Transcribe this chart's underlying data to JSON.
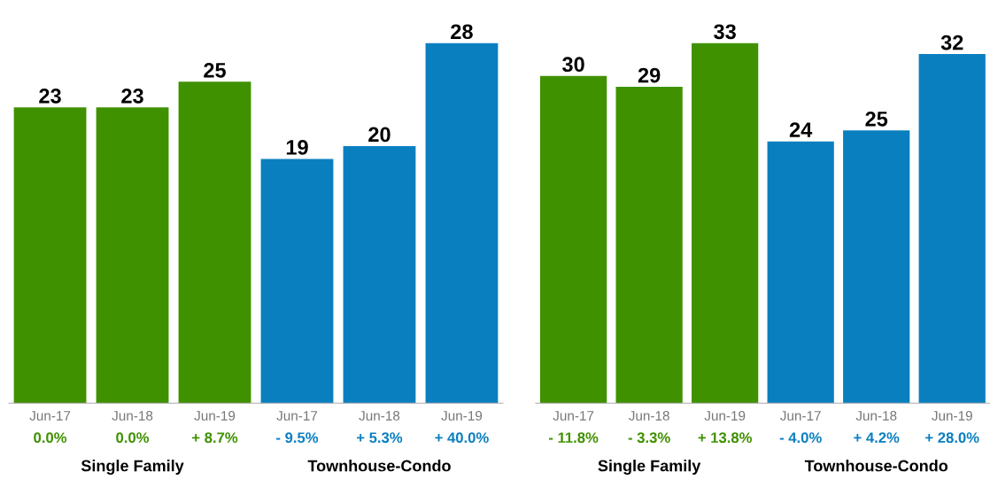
{
  "chart_data": [
    {
      "type": "bar",
      "categories": [
        "Jun-17",
        "Jun-18",
        "Jun-19",
        "Jun-17",
        "Jun-18",
        "Jun-19"
      ],
      "data_labels": true,
      "tick_labels": "x",
      "series": [
        {
          "color": "#3f9100",
          "values": [
            23,
            23,
            25,
            null,
            null,
            null
          ]
        },
        {
          "color": "#0a7fc0",
          "values": [
            null,
            null,
            null,
            19,
            20,
            28
          ]
        }
      ],
      "annotations": [
        "0.0%",
        "0.0%",
        "+ 8.7%",
        "- 9.5%",
        "+ 5.3%",
        "+ 40.0%",
        "Single Family",
        "Townhouse-Condo"
      ]
    },
    {
      "type": "bar",
      "categories": [
        "Jun-17",
        "Jun-18",
        "Jun-19",
        "Jun-17",
        "Jun-18",
        "Jun-19"
      ],
      "data_labels": true,
      "tick_labels": "x",
      "series": [
        {
          "color": "#3f9100",
          "values": [
            30,
            29,
            33,
            null,
            null,
            null
          ]
        },
        {
          "color": "#0a7fc0",
          "values": [
            null,
            null,
            null,
            24,
            25,
            32
          ]
        }
      ],
      "annotations": [
        "- 11.8%",
        "- 3.3%",
        "+ 13.8%",
        "- 4.0%",
        "+ 4.2%",
        "+ 28.0%",
        "Single Family",
        "Townhouse-Condo"
      ]
    }
  ]
}
